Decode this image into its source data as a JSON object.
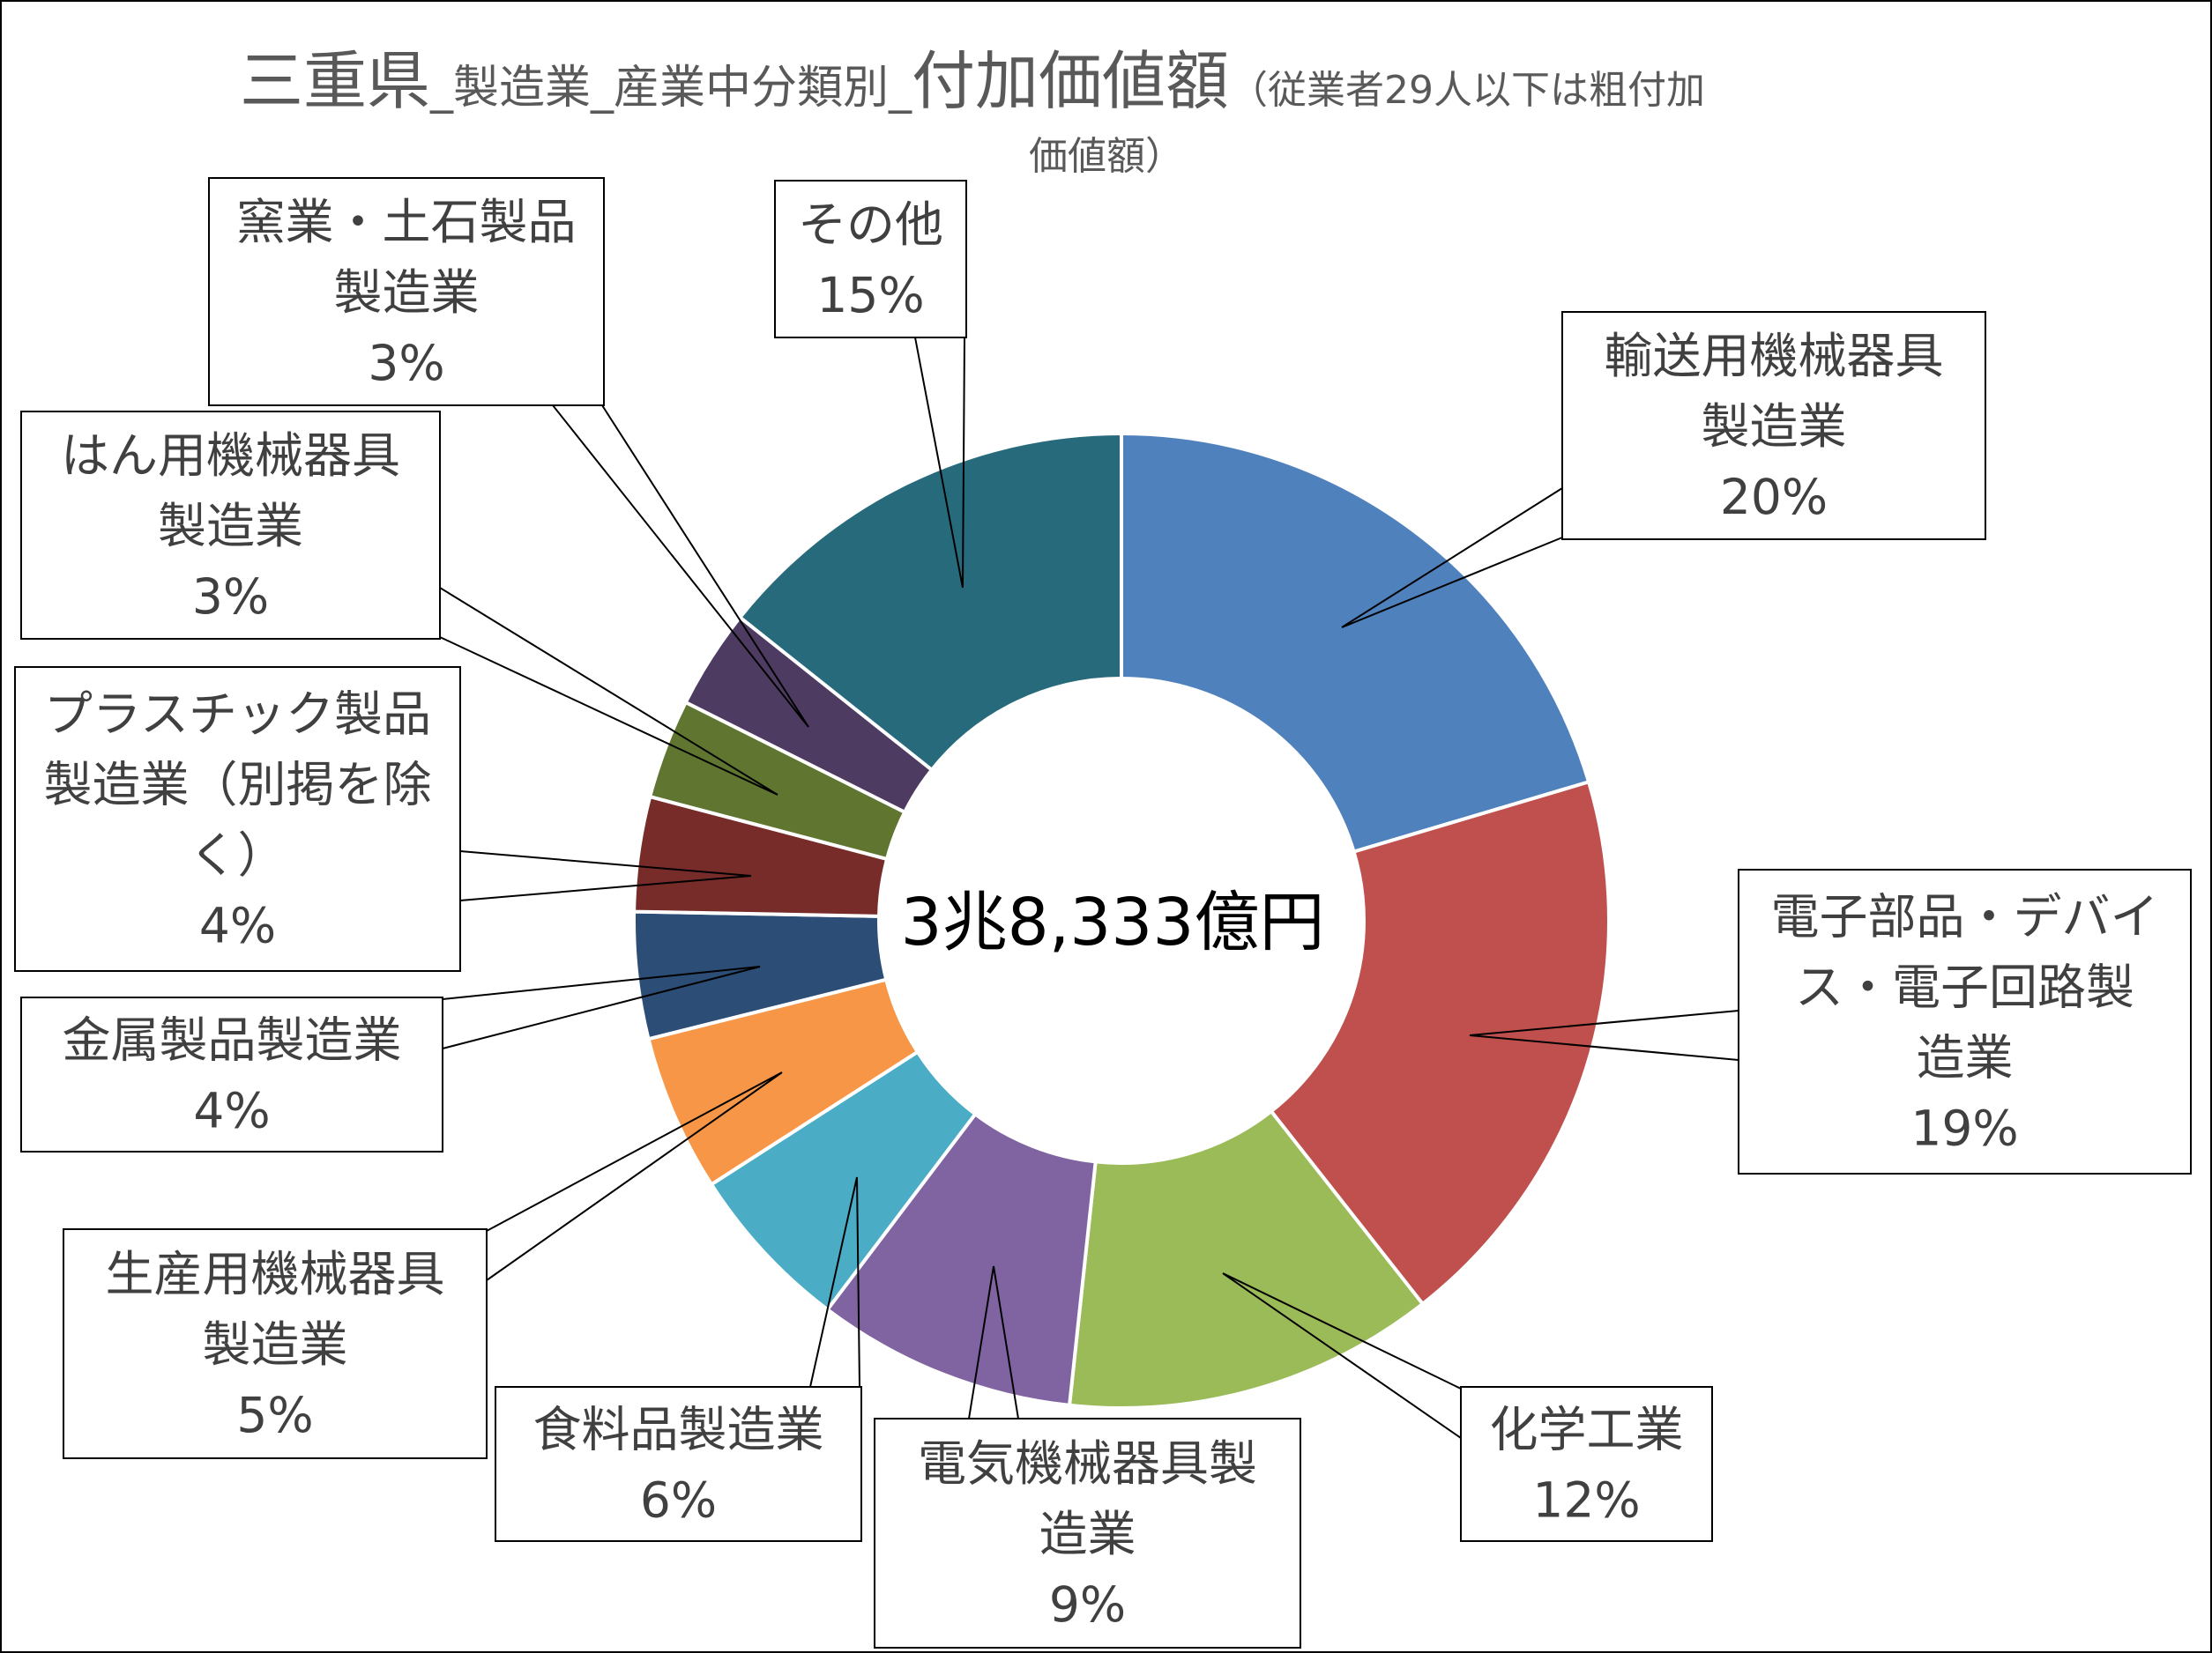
{
  "title": {
    "part1": "三重県",
    "part2": "_製造業_産業中分類別_",
    "part3": "付加価値額",
    "part4": "（従業者29人以下は粗付加",
    "part5": "価値額）"
  },
  "center_label": "3兆8,333億円",
  "chart_data": {
    "type": "pie",
    "title": "三重県_製造業_産業中分類別_付加価値額（従業者29人以下は粗付加価値額）",
    "total_label": "3兆8,333億円",
    "slices": [
      {
        "name": "輸送用機械器具製造業",
        "lines": [
          "輸送用機械器具",
          "製造業"
        ],
        "pct_label": "20%",
        "value": 20.4,
        "color": "#4F81BD"
      },
      {
        "name": "電子部品・デバイス・電子回路製造業",
        "lines": [
          "電子部品・デバイ",
          "ス・電子回路製",
          "造業"
        ],
        "pct_label": "19%",
        "value": 19.0,
        "color": "#C0504D"
      },
      {
        "name": "化学工業",
        "lines": [
          "化学工業"
        ],
        "pct_label": "12%",
        "value": 12.3,
        "color": "#9BBB59"
      },
      {
        "name": "電気機械器具製造業",
        "lines": [
          "電気機械器具製",
          "造業"
        ],
        "pct_label": "9%",
        "value": 8.6,
        "color": "#8064A2"
      },
      {
        "name": "食料品製造業",
        "lines": [
          "食料品製造業"
        ],
        "pct_label": "6%",
        "value": 5.6,
        "color": "#4BACC6"
      },
      {
        "name": "生産用機械器具製造業",
        "lines": [
          "生産用機械器具",
          "製造業"
        ],
        "pct_label": "5%",
        "value": 5.2,
        "color": "#F79646"
      },
      {
        "name": "金属製品製造業",
        "lines": [
          "金属製品製造業"
        ],
        "pct_label": "4%",
        "value": 4.2,
        "color": "#2C4D75"
      },
      {
        "name": "プラスチック製品製造業（別掲を除く）",
        "lines": [
          "プラスチック製品",
          "製造業（別掲を除",
          "く）"
        ],
        "pct_label": "4%",
        "value": 3.8,
        "color": "#772C2A"
      },
      {
        "name": "はん用機械器具製造業",
        "lines": [
          "はん用機械器具",
          "製造業"
        ],
        "pct_label": "3%",
        "value": 3.3,
        "color": "#5F7530"
      },
      {
        "name": "窯業・土石製品製造業",
        "lines": [
          "窯業・土石製品",
          "製造業"
        ],
        "pct_label": "3%",
        "value": 3.3,
        "color": "#4D3B62"
      },
      {
        "name": "その他",
        "lines": [
          "その他"
        ],
        "pct_label": "15%",
        "value": 14.3,
        "color": "#276A7C"
      }
    ]
  }
}
